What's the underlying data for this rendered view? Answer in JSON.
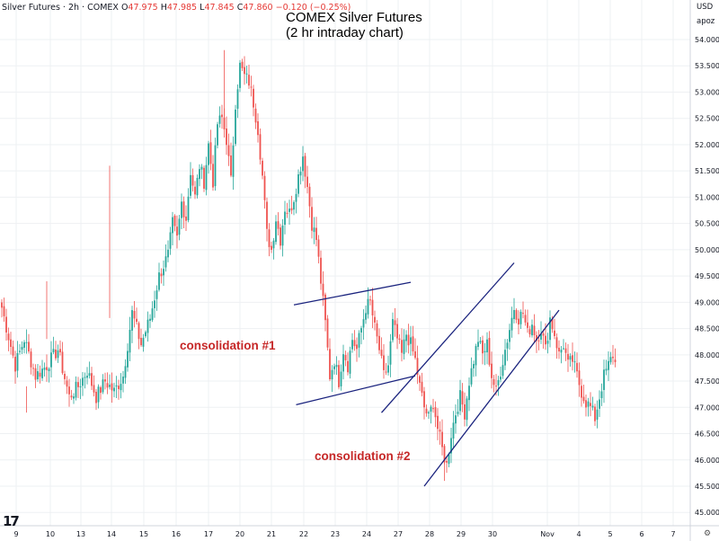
{
  "header": {
    "symbol": "Silver Futures · 2h · COMEX",
    "ohlc": [
      {
        "label": "O",
        "value": "47.975"
      },
      {
        "label": "H",
        "value": "47.985"
      },
      {
        "label": "L",
        "value": "47.845"
      },
      {
        "label": "C",
        "value": "47.860"
      }
    ],
    "change": "−0.120 (−0.25%)",
    "currency": "USD",
    "unit": "apoz"
  },
  "title_lines": [
    "COMEX Silver Futures",
    "(2 hr intraday chart)"
  ],
  "annotations": {
    "consolidation_1": "consolidation #1",
    "consolidation_2": "consolidation #2"
  },
  "colors": {
    "up": "#26a69a",
    "down": "#ef5350",
    "trendline": "#1a237e",
    "annotation": "#c62828",
    "grid": "#eef0f3"
  },
  "chart_data": {
    "type": "candlestick",
    "instrument": "Silver Futures",
    "exchange": "COMEX",
    "interval": "2h",
    "ylim": [
      44.6,
      54.6
    ],
    "y_ticks": [
      45.0,
      45.5,
      46.0,
      46.5,
      47.0,
      47.5,
      48.0,
      48.5,
      49.0,
      49.5,
      50.0,
      50.5,
      51.0,
      51.5,
      52.0,
      52.5,
      53.0,
      53.5,
      54.0
    ],
    "x_tick_labels": [
      "9",
      "10",
      "13",
      "14",
      "15",
      "16",
      "17",
      "20",
      "21",
      "22",
      "23",
      "24",
      "27",
      "28",
      "29",
      "30",
      "Nov",
      "4",
      "5",
      "6",
      "7"
    ],
    "close_path": [
      [
        0,
        48.9
      ],
      [
        6,
        47.8
      ],
      [
        10,
        48.3
      ],
      [
        15,
        47.6
      ],
      [
        20,
        47.8
      ],
      [
        25,
        48.1
      ],
      [
        30,
        47.2
      ],
      [
        34,
        47.4
      ],
      [
        38,
        47.7
      ],
      [
        42,
        47.2
      ],
      [
        46,
        47.5
      ],
      [
        50,
        47.3
      ],
      [
        54,
        47.6
      ],
      [
        58,
        48.8
      ],
      [
        62,
        48.2
      ],
      [
        66,
        48.7
      ],
      [
        70,
        49.5
      ],
      [
        74,
        49.9
      ],
      [
        76,
        50.5
      ],
      [
        78,
        50.2
      ],
      [
        80,
        50.9
      ],
      [
        82,
        50.6
      ],
      [
        84,
        51.5
      ],
      [
        86,
        51.0
      ],
      [
        88,
        51.6
      ],
      [
        90,
        51.3
      ],
      [
        92,
        52.0
      ],
      [
        94,
        51.3
      ],
      [
        96,
        52.4
      ],
      [
        98,
        52.5
      ],
      [
        100,
        52.1
      ],
      [
        102,
        51.3
      ],
      [
        104,
        52.8
      ],
      [
        106,
        53.5
      ],
      [
        108,
        53.3
      ],
      [
        110,
        53.2
      ],
      [
        112,
        52.8
      ],
      [
        114,
        52.3
      ],
      [
        116,
        51.4
      ],
      [
        118,
        50.3
      ],
      [
        120,
        50.0
      ],
      [
        122,
        50.6
      ],
      [
        124,
        50.2
      ],
      [
        126,
        50.8
      ],
      [
        128,
        50.7
      ],
      [
        130,
        51.0
      ],
      [
        132,
        51.4
      ],
      [
        134,
        51.8
      ],
      [
        136,
        51.2
      ],
      [
        138,
        50.5
      ],
      [
        140,
        50.2
      ],
      [
        142,
        49.4
      ],
      [
        144,
        48.6
      ],
      [
        146,
        47.6
      ],
      [
        148,
        47.9
      ],
      [
        150,
        47.5
      ],
      [
        152,
        48.1
      ],
      [
        154,
        47.8
      ],
      [
        156,
        48.3
      ],
      [
        158,
        48.1
      ],
      [
        160,
        48.5
      ],
      [
        162,
        48.9
      ],
      [
        164,
        49.0
      ],
      [
        166,
        48.5
      ],
      [
        168,
        48.1
      ],
      [
        170,
        47.6
      ],
      [
        172,
        47.8
      ],
      [
        174,
        48.6
      ],
      [
        176,
        48.3
      ],
      [
        178,
        48.0
      ],
      [
        180,
        48.4
      ],
      [
        182,
        48.2
      ],
      [
        184,
        47.9
      ],
      [
        186,
        47.4
      ],
      [
        188,
        47.0
      ],
      [
        190,
        46.8
      ],
      [
        192,
        47.1
      ],
      [
        194,
        46.6
      ],
      [
        196,
        46.2
      ],
      [
        198,
        45.9
      ],
      [
        200,
        46.5
      ],
      [
        202,
        46.9
      ],
      [
        204,
        47.2
      ],
      [
        206,
        46.9
      ],
      [
        208,
        47.5
      ],
      [
        210,
        47.9
      ],
      [
        212,
        48.3
      ],
      [
        214,
        48.0
      ],
      [
        216,
        48.2
      ],
      [
        218,
        47.6
      ],
      [
        220,
        47.3
      ],
      [
        222,
        47.7
      ],
      [
        224,
        48.1
      ],
      [
        226,
        48.5
      ],
      [
        228,
        48.9
      ],
      [
        230,
        48.7
      ],
      [
        232,
        48.8
      ],
      [
        234,
        48.4
      ],
      [
        236,
        48.6
      ],
      [
        238,
        48.3
      ],
      [
        240,
        48.5
      ],
      [
        242,
        48.1
      ],
      [
        244,
        48.7
      ],
      [
        246,
        48.4
      ],
      [
        248,
        48.0
      ],
      [
        250,
        48.2
      ],
      [
        252,
        47.8
      ],
      [
        254,
        47.9
      ],
      [
        256,
        47.6
      ],
      [
        258,
        47.3
      ],
      [
        260,
        47.1
      ],
      [
        262,
        47.0
      ],
      [
        264,
        46.8
      ],
      [
        266,
        47.2
      ],
      [
        268,
        47.6
      ],
      [
        270,
        47.8
      ],
      [
        272,
        48.0
      ],
      [
        273,
        47.86
      ]
    ],
    "trendlines": [
      {
        "name": "consolidation-1-upper",
        "from": [
          130,
          48.95
        ],
        "to": [
          182,
          49.38
        ]
      },
      {
        "name": "consolidation-1-lower",
        "from": [
          131,
          47.05
        ],
        "to": [
          184,
          47.6
        ]
      },
      {
        "name": "consolidation-2-upper",
        "from": [
          169,
          46.9
        ],
        "to": [
          228,
          49.75
        ]
      },
      {
        "name": "consolidation-2-lower",
        "from": [
          188,
          45.5
        ],
        "to": [
          248,
          48.85
        ]
      }
    ],
    "last_close": 47.86
  }
}
